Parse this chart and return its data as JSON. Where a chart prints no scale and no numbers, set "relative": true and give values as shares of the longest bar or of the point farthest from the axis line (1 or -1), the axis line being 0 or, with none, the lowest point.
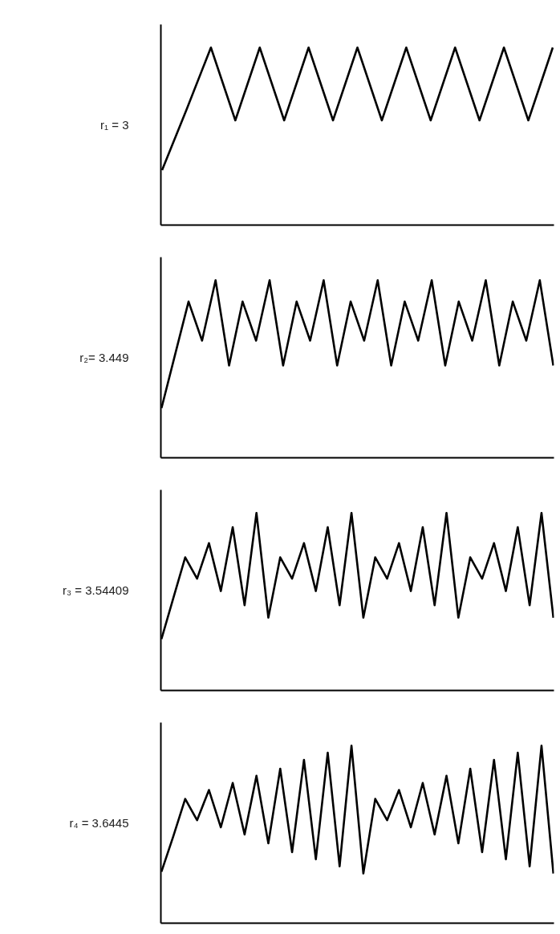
{
  "chart_data": [
    {
      "type": "line",
      "ylabel": "r₁ = 3",
      "relative": true,
      "categories": [
        null,
        null,
        null,
        null,
        null,
        null,
        null,
        null,
        null,
        null,
        null,
        null,
        null,
        null,
        null,
        null,
        null
      ],
      "series": [
        {
          "color": "#000000",
          "values": [
            0.31,
            0.65,
            1,
            0.59,
            1,
            0.59,
            1,
            0.59,
            1,
            0.59,
            1,
            0.59,
            1,
            0.59,
            1,
            0.59,
            1
          ]
        }
      ],
      "grid": false,
      "legend": false,
      "marker": "none",
      "line_style": "solid"
    },
    {
      "type": "line",
      "ylabel": "r₂= 3.449",
      "relative": true,
      "categories": [
        null,
        null,
        null,
        null,
        null,
        null,
        null,
        null,
        null,
        null,
        null,
        null,
        null,
        null,
        null,
        null,
        null,
        null,
        null,
        null,
        null,
        null,
        null,
        null,
        null,
        null,
        null,
        null,
        null,
        null
      ],
      "series": [
        {
          "color": "#000000",
          "values": [
            0.28,
            0.58,
            0.88,
            0.66,
            1,
            0.52,
            0.88,
            0.66,
            1,
            0.52,
            0.88,
            0.66,
            1,
            0.52,
            0.88,
            0.66,
            1,
            0.52,
            0.88,
            0.66,
            1,
            0.52,
            0.88,
            0.66,
            1,
            0.52,
            0.88,
            0.66,
            1,
            0.52
          ]
        }
      ],
      "grid": false,
      "legend": false,
      "marker": "none",
      "line_style": "solid"
    },
    {
      "type": "line",
      "ylabel": "r₃ = 3.54409",
      "relative": true,
      "categories": [
        null,
        null,
        null,
        null,
        null,
        null,
        null,
        null,
        null,
        null,
        null,
        null,
        null,
        null,
        null,
        null,
        null,
        null,
        null,
        null,
        null,
        null,
        null,
        null,
        null,
        null,
        null,
        null,
        null,
        null,
        null,
        null,
        null,
        null
      ],
      "series": [
        {
          "color": "#000000",
          "values": [
            0.29,
            0.52,
            0.75,
            0.63,
            0.83,
            0.56,
            0.92,
            0.48,
            1,
            0.41,
            0.75,
            0.63,
            0.83,
            0.56,
            0.92,
            0.48,
            1,
            0.41,
            0.75,
            0.63,
            0.83,
            0.56,
            0.92,
            0.48,
            1,
            0.41,
            0.75,
            0.63,
            0.83,
            0.56,
            0.92,
            0.48,
            1,
            0.41
          ]
        }
      ],
      "grid": false,
      "legend": false,
      "marker": "none",
      "line_style": "solid"
    },
    {
      "type": "line",
      "ylabel": "r₄ = 3.6445",
      "relative": true,
      "categories": [
        null,
        null,
        null,
        null,
        null,
        null,
        null,
        null,
        null,
        null,
        null,
        null,
        null,
        null,
        null,
        null,
        null,
        null,
        null,
        null,
        null,
        null,
        null,
        null,
        null,
        null,
        null,
        null,
        null,
        null,
        null,
        null,
        null,
        null
      ],
      "series": [
        {
          "color": "#000000",
          "values": [
            0.29,
            0.49,
            0.7,
            0.58,
            0.75,
            0.54,
            0.79,
            0.5,
            0.83,
            0.45,
            0.87,
            0.4,
            0.92,
            0.36,
            0.96,
            0.32,
            1,
            0.28,
            0.7,
            0.58,
            0.75,
            0.54,
            0.79,
            0.5,
            0.83,
            0.45,
            0.87,
            0.4,
            0.92,
            0.36,
            0.96,
            0.32,
            1,
            0.28
          ]
        }
      ],
      "grid": false,
      "legend": false,
      "marker": "none",
      "line_style": "solid"
    }
  ]
}
